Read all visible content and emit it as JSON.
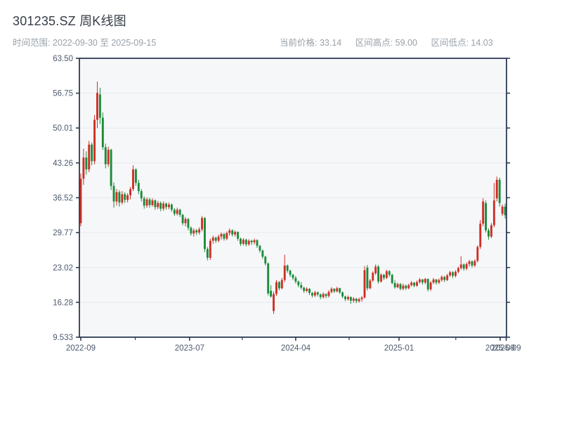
{
  "header": {
    "title": "301235.SZ 周K线图",
    "date_range_text": "时间范围: 2022-09-30 至 2025-09-15",
    "info": {
      "current": "当前价格: 33.14",
      "range_high": "区间高点: 59.00",
      "range_low": "区间低点: 14.03"
    }
  },
  "chart_data": {
    "type": "candlestick",
    "title": "301235.SZ 周K线图",
    "symbol": "301235.SZ",
    "period": "weekly",
    "date_range": [
      "2022-09-30",
      "2025-09-15"
    ],
    "current_price": 33.14,
    "range_high": 59.0,
    "range_low": 14.03,
    "legend_position": "none",
    "grid": true,
    "y_axis": {
      "min": 9.533,
      "max": 63.5,
      "ticks": [
        63.5,
        56.75,
        50.01,
        43.26,
        36.52,
        29.77,
        23.02,
        16.28,
        9.533
      ],
      "labels": [
        "63.50",
        "56.75",
        "50.01",
        "43.26",
        "36.52",
        "29.77",
        "23.02",
        "16.28",
        "9.533"
      ]
    },
    "x_axis": {
      "ticks": [
        {
          "week": 0,
          "label": "2022-09"
        },
        {
          "week": 39.5,
          "label": "2023-07"
        },
        {
          "week": 78,
          "label": "2024-04"
        },
        {
          "week": 115.5,
          "label": "2025-01"
        },
        {
          "week": 152.2,
          "label": "2025-09"
        },
        {
          "week": 154.4,
          "label": "2025-09"
        }
      ],
      "minor_ticks": [
        19.8,
        58.6,
        97.4,
        136.1
      ]
    },
    "colors": {
      "up": "#ce2f26",
      "down": "#1b8c3a",
      "spine": "#2d3b53",
      "grid": "#e8e9ed",
      "plot_bg": "#f6f7f9",
      "tick_label": "#4d5a6e"
    },
    "candles_format": [
      "open",
      "high",
      "low",
      "close"
    ],
    "candles": [
      [
        31.6,
        41.2,
        31.0,
        40.2
      ],
      [
        40.2,
        46.0,
        39.0,
        44.3
      ],
      [
        44.3,
        45.5,
        41.0,
        42.0
      ],
      [
        42.0,
        47.5,
        41.5,
        46.8
      ],
      [
        46.8,
        47.2,
        42.8,
        43.6
      ],
      [
        43.6,
        52.5,
        43.0,
        51.6
      ],
      [
        51.6,
        59.0,
        50.0,
        56.8
      ],
      [
        56.5,
        57.8,
        50.8,
        52.0
      ],
      [
        52.0,
        53.0,
        45.8,
        46.3
      ],
      [
        46.3,
        47.0,
        42.2,
        43.0
      ],
      [
        43.0,
        46.4,
        42.5,
        45.8
      ],
      [
        45.8,
        46.0,
        38.0,
        38.8
      ],
      [
        38.8,
        39.5,
        34.6,
        35.8
      ],
      [
        35.8,
        38.2,
        35.0,
        37.6
      ],
      [
        37.6,
        38.0,
        34.8,
        35.6
      ],
      [
        35.6,
        37.8,
        35.2,
        37.2
      ],
      [
        37.2,
        37.6,
        35.5,
        36.1
      ],
      [
        36.1,
        37.4,
        35.6,
        37.0
      ],
      [
        37.0,
        38.6,
        36.2,
        38.2
      ],
      [
        38.2,
        42.8,
        37.8,
        42.0
      ],
      [
        42.0,
        42.2,
        38.8,
        39.4
      ],
      [
        39.4,
        40.0,
        37.2,
        37.8
      ],
      [
        37.8,
        38.2,
        35.8,
        36.4
      ],
      [
        36.4,
        36.8,
        34.4,
        35.0
      ],
      [
        35.0,
        36.6,
        34.6,
        36.2
      ],
      [
        36.2,
        36.5,
        34.6,
        35.1
      ],
      [
        35.1,
        36.4,
        34.8,
        36.0
      ],
      [
        36.0,
        36.2,
        34.2,
        34.7
      ],
      [
        34.7,
        35.9,
        34.3,
        35.5
      ],
      [
        35.5,
        35.8,
        33.9,
        34.4
      ],
      [
        34.4,
        35.8,
        34.0,
        35.4
      ],
      [
        35.4,
        35.6,
        34.2,
        34.7
      ],
      [
        34.7,
        35.6,
        34.3,
        35.2
      ],
      [
        35.2,
        35.4,
        33.8,
        34.2
      ],
      [
        34.2,
        34.5,
        33.0,
        33.4
      ],
      [
        33.4,
        34.6,
        33.1,
        34.2
      ],
      [
        34.2,
        34.4,
        32.8,
        33.2
      ],
      [
        33.2,
        33.4,
        31.2,
        31.6
      ],
      [
        31.6,
        32.8,
        31.0,
        32.4
      ],
      [
        32.4,
        32.6,
        30.2,
        30.7
      ],
      [
        30.7,
        31.0,
        29.2,
        29.6
      ],
      [
        29.6,
        30.6,
        29.0,
        30.2
      ],
      [
        30.2,
        30.5,
        29.3,
        29.8
      ],
      [
        29.8,
        30.8,
        29.4,
        30.4
      ],
      [
        30.4,
        33.0,
        30.0,
        32.6
      ],
      [
        32.6,
        32.8,
        26.0,
        26.6
      ],
      [
        26.6,
        27.0,
        24.4,
        24.9
      ],
      [
        24.9,
        28.6,
        24.5,
        28.2
      ],
      [
        28.2,
        29.2,
        27.6,
        28.8
      ],
      [
        28.8,
        29.0,
        27.8,
        28.2
      ],
      [
        28.2,
        29.4,
        27.9,
        29.0
      ],
      [
        29.0,
        29.8,
        28.4,
        29.5
      ],
      [
        29.5,
        29.7,
        28.2,
        28.6
      ],
      [
        28.6,
        30.0,
        28.3,
        29.7
      ],
      [
        29.7,
        30.6,
        29.2,
        30.2
      ],
      [
        30.2,
        30.4,
        29.0,
        29.4
      ],
      [
        29.4,
        30.2,
        29.0,
        29.9
      ],
      [
        29.9,
        30.0,
        28.2,
        28.6
      ],
      [
        28.6,
        28.8,
        27.2,
        27.6
      ],
      [
        27.6,
        28.7,
        27.3,
        28.4
      ],
      [
        28.4,
        28.6,
        27.1,
        27.5
      ],
      [
        27.5,
        28.5,
        27.2,
        28.2
      ],
      [
        28.2,
        28.4,
        27.4,
        27.9
      ],
      [
        27.9,
        28.6,
        27.5,
        28.3
      ],
      [
        28.3,
        28.5,
        26.8,
        27.2
      ],
      [
        27.2,
        27.4,
        25.9,
        26.3
      ],
      [
        26.3,
        26.5,
        24.7,
        25.1
      ],
      [
        25.1,
        25.3,
        23.4,
        23.8
      ],
      [
        23.8,
        24.0,
        17.6,
        18.0
      ],
      [
        18.5,
        19.6,
        17.2,
        17.4
      ],
      [
        14.6,
        18.4,
        14.03,
        17.9
      ],
      [
        17.9,
        20.6,
        17.5,
        20.2
      ],
      [
        20.2,
        20.4,
        18.6,
        19.0
      ],
      [
        19.0,
        21.0,
        18.8,
        20.6
      ],
      [
        20.6,
        25.5,
        20.2,
        23.4
      ],
      [
        23.4,
        23.6,
        22.0,
        22.4
      ],
      [
        22.4,
        22.6,
        21.2,
        21.6
      ],
      [
        21.6,
        21.8,
        20.6,
        21.0
      ],
      [
        21.0,
        21.4,
        19.9,
        20.3
      ],
      [
        20.3,
        20.5,
        19.2,
        19.6
      ],
      [
        19.6,
        20.2,
        18.8,
        19.1
      ],
      [
        19.1,
        19.3,
        18.1,
        18.5
      ],
      [
        18.5,
        19.2,
        18.2,
        18.9
      ],
      [
        18.9,
        19.0,
        17.7,
        18.1
      ],
      [
        18.1,
        18.3,
        17.2,
        17.6
      ],
      [
        17.6,
        18.5,
        17.3,
        18.2
      ],
      [
        18.2,
        18.4,
        17.4,
        17.8
      ],
      [
        17.8,
        18.0,
        16.9,
        17.3
      ],
      [
        17.3,
        18.2,
        17.0,
        17.9
      ],
      [
        17.9,
        18.0,
        17.1,
        17.5
      ],
      [
        17.5,
        18.6,
        17.2,
        18.3
      ],
      [
        18.3,
        19.2,
        18.0,
        18.9
      ],
      [
        18.9,
        19.0,
        18.1,
        18.4
      ],
      [
        18.4,
        19.3,
        18.2,
        19.0
      ],
      [
        19.0,
        19.1,
        17.9,
        18.2
      ],
      [
        18.2,
        18.4,
        17.1,
        17.4
      ],
      [
        17.4,
        17.6,
        16.5,
        16.9
      ],
      [
        16.9,
        17.6,
        16.6,
        17.3
      ],
      [
        17.3,
        17.4,
        16.0,
        16.6
      ],
      [
        16.6,
        17.3,
        16.2,
        17.0
      ],
      [
        17.0,
        17.1,
        16.1,
        16.5
      ],
      [
        16.5,
        17.2,
        16.2,
        16.9
      ],
      [
        16.9,
        17.5,
        16.4,
        17.2
      ],
      [
        17.2,
        23.3,
        17.0,
        22.5
      ],
      [
        23.0,
        23.5,
        18.6,
        19.0
      ],
      [
        19.0,
        20.8,
        18.8,
        20.5
      ],
      [
        20.5,
        22.3,
        20.2,
        22.0
      ],
      [
        21.9,
        23.6,
        21.6,
        23.2
      ],
      [
        23.2,
        23.5,
        19.9,
        20.3
      ],
      [
        20.3,
        21.9,
        20.1,
        21.6
      ],
      [
        21.6,
        21.8,
        20.6,
        21.0
      ],
      [
        21.0,
        22.6,
        20.8,
        22.3
      ],
      [
        22.3,
        22.5,
        21.2,
        21.6
      ],
      [
        21.6,
        21.8,
        19.8,
        20.0
      ],
      [
        20.0,
        20.6,
        18.9,
        19.2
      ],
      [
        19.2,
        20.1,
        19.0,
        19.8
      ],
      [
        19.8,
        20.0,
        18.6,
        18.9
      ],
      [
        18.9,
        19.9,
        18.6,
        19.5
      ],
      [
        19.5,
        19.7,
        18.7,
        19.0
      ],
      [
        19.0,
        19.9,
        18.8,
        19.6
      ],
      [
        19.6,
        20.4,
        19.3,
        20.1
      ],
      [
        20.1,
        20.2,
        19.2,
        19.5
      ],
      [
        19.5,
        20.5,
        19.3,
        20.2
      ],
      [
        20.2,
        21.0,
        19.9,
        20.7
      ],
      [
        20.7,
        20.8,
        19.7,
        20.1
      ],
      [
        20.1,
        21.0,
        19.8,
        20.8
      ],
      [
        20.8,
        20.9,
        18.4,
        18.8
      ],
      [
        18.8,
        20.4,
        18.5,
        20.1
      ],
      [
        20.1,
        21.0,
        19.8,
        20.7
      ],
      [
        20.7,
        20.8,
        19.7,
        20.1
      ],
      [
        20.1,
        20.9,
        19.8,
        20.6
      ],
      [
        20.6,
        21.5,
        20.3,
        21.2
      ],
      [
        21.2,
        21.4,
        20.2,
        20.6
      ],
      [
        20.6,
        21.8,
        20.4,
        21.5
      ],
      [
        21.5,
        22.4,
        21.2,
        22.1
      ],
      [
        22.1,
        22.3,
        21.0,
        21.4
      ],
      [
        21.4,
        22.5,
        21.1,
        22.2
      ],
      [
        22.2,
        23.2,
        21.9,
        22.9
      ],
      [
        22.9,
        25.2,
        22.6,
        23.6
      ],
      [
        23.6,
        23.8,
        22.4,
        22.8
      ],
      [
        22.8,
        24.0,
        22.5,
        23.7
      ],
      [
        23.7,
        24.5,
        23.2,
        24.2
      ],
      [
        24.2,
        24.4,
        23.0,
        23.4
      ],
      [
        23.4,
        24.6,
        23.1,
        24.3
      ],
      [
        24.3,
        27.3,
        24.0,
        27.0
      ],
      [
        27.0,
        32.2,
        26.6,
        31.5
      ],
      [
        31.5,
        36.4,
        31.0,
        35.8
      ],
      [
        35.5,
        36.0,
        29.8,
        30.2
      ],
      [
        30.2,
        30.6,
        28.4,
        29.0
      ],
      [
        29.0,
        31.6,
        28.7,
        31.2
      ],
      [
        31.2,
        39.4,
        30.8,
        36.0
      ],
      [
        36.4,
        40.6,
        35.8,
        40.0
      ],
      [
        40.0,
        40.4,
        34.8,
        35.5
      ],
      [
        33.4,
        35.2,
        33.0,
        34.8
      ],
      [
        34.8,
        35.4,
        32.5,
        33.14
      ]
    ]
  }
}
